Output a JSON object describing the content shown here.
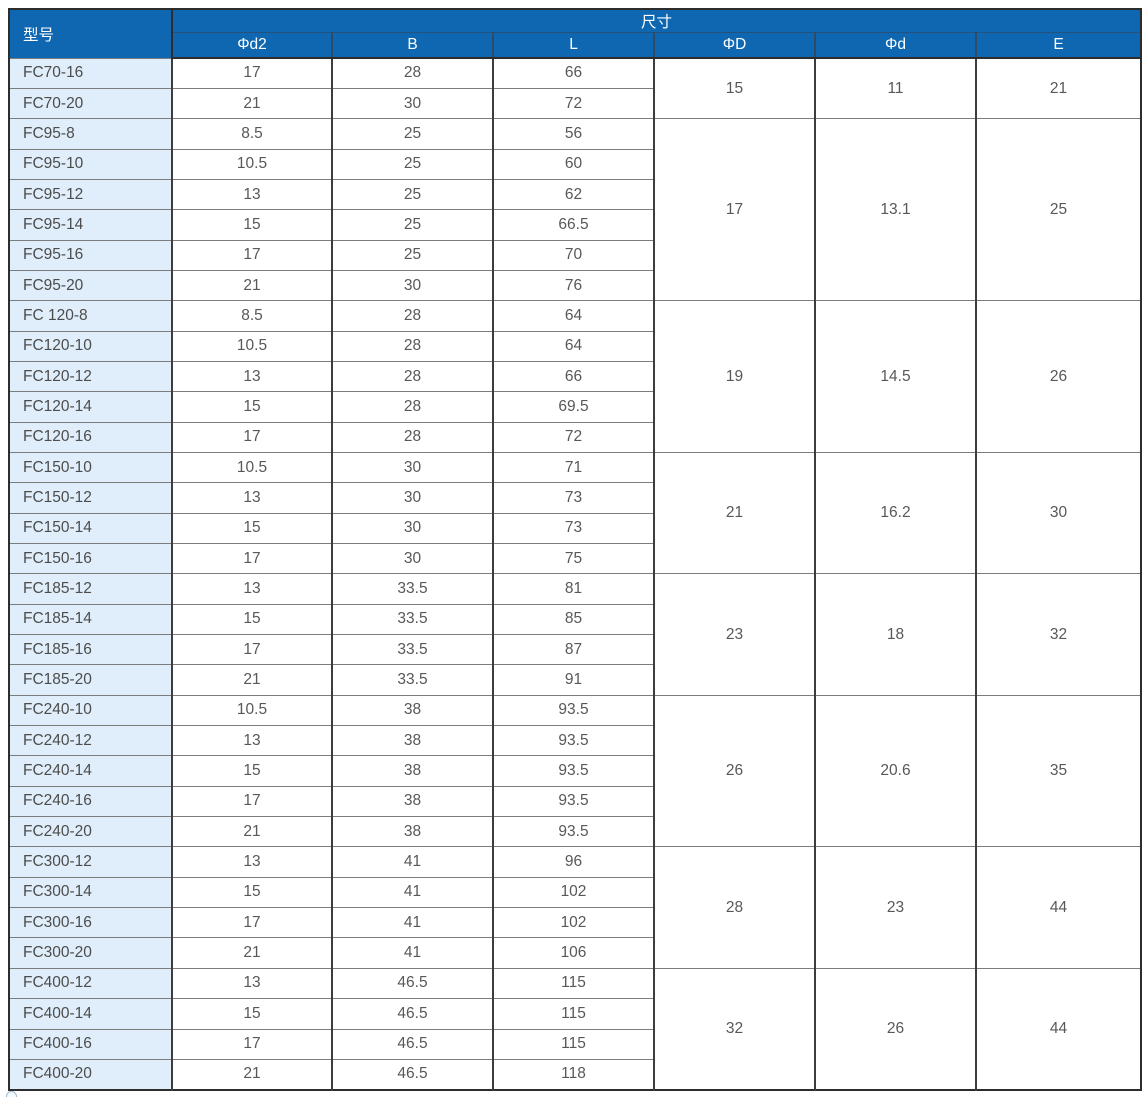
{
  "table": {
    "model_header": "型号",
    "size_header": "尺寸",
    "columns": [
      "Φd2",
      "B",
      "L",
      "ΦD",
      "Φd",
      "E"
    ],
    "groups": [
      {
        "shared": {
          "phiD": "15",
          "phid": "11",
          "E": "21"
        },
        "rows": [
          [
            "FC70-16",
            "17",
            "28",
            "66"
          ],
          [
            "FC70-20",
            "21",
            "30",
            "72"
          ]
        ]
      },
      {
        "shared": {
          "phiD": "17",
          "phid": "13.1",
          "E": "25"
        },
        "rows": [
          [
            "FC95-8",
            "8.5",
            "25",
            "56"
          ],
          [
            "FC95-10",
            "10.5",
            "25",
            "60"
          ],
          [
            "FC95-12",
            "13",
            "25",
            "62"
          ],
          [
            "FC95-14",
            "15",
            "25",
            "66.5"
          ],
          [
            "FC95-16",
            "17",
            "25",
            "70"
          ],
          [
            "FC95-20",
            "21",
            "30",
            "76"
          ]
        ]
      },
      {
        "shared": {
          "phiD": "19",
          "phid": "14.5",
          "E": "26"
        },
        "rows": [
          [
            "FC 120-8",
            "8.5",
            "28",
            "64"
          ],
          [
            "FC120-10",
            "10.5",
            "28",
            "64"
          ],
          [
            "FC120-12",
            "13",
            "28",
            "66"
          ],
          [
            "FC120-14",
            "15",
            "28",
            "69.5"
          ],
          [
            "FC120-16",
            "17",
            "28",
            "72"
          ]
        ]
      },
      {
        "shared": {
          "phiD": "21",
          "phid": "16.2",
          "E": "30"
        },
        "rows": [
          [
            "FC150-10",
            "10.5",
            "30",
            "71"
          ],
          [
            "FC150-12",
            "13",
            "30",
            "73"
          ],
          [
            "FC150-14",
            "15",
            "30",
            "73"
          ],
          [
            "FC150-16",
            "17",
            "30",
            "75"
          ]
        ]
      },
      {
        "shared": {
          "phiD": "23",
          "phid": "18",
          "E": "32"
        },
        "rows": [
          [
            "FC185-12",
            "13",
            "33.5",
            "81"
          ],
          [
            "FC185-14",
            "15",
            "33.5",
            "85"
          ],
          [
            "FC185-16",
            "17",
            "33.5",
            "87"
          ],
          [
            "FC185-20",
            "21",
            "33.5",
            "91"
          ]
        ]
      },
      {
        "shared": {
          "phiD": "26",
          "phid": "20.6",
          "E": "35"
        },
        "rows": [
          [
            "FC240-10",
            "10.5",
            "38",
            "93.5"
          ],
          [
            "FC240-12",
            "13",
            "38",
            "93.5"
          ],
          [
            "FC240-14",
            "15",
            "38",
            "93.5"
          ],
          [
            "FC240-16",
            "17",
            "38",
            "93.5"
          ],
          [
            "FC240-20",
            "21",
            "38",
            "93.5"
          ]
        ]
      },
      {
        "shared": {
          "phiD": "28",
          "phid": "23",
          "E": "44"
        },
        "rows": [
          [
            "FC300-12",
            "13",
            "41",
            "96"
          ],
          [
            "FC300-14",
            "15",
            "41",
            "102"
          ],
          [
            "FC300-16",
            "17",
            "41",
            "102"
          ],
          [
            "FC300-20",
            "21",
            "41",
            "106"
          ]
        ]
      },
      {
        "shared": {
          "phiD": "32",
          "phid": "26",
          "E": "44"
        },
        "rows": [
          [
            "FC400-12",
            "13",
            "46.5",
            "115"
          ],
          [
            "FC400-14",
            "15",
            "46.5",
            "115"
          ],
          [
            "FC400-16",
            "17",
            "46.5",
            "115"
          ],
          [
            "FC400-20",
            "21",
            "46.5",
            "118"
          ]
        ]
      }
    ]
  },
  "colors": {
    "header_bg": "#0f67b1",
    "model_cell_bg": "#dfeefa",
    "outer_border": "#2d2d2d",
    "row_line": "#7c7c7c",
    "data_text": "#585858"
  }
}
